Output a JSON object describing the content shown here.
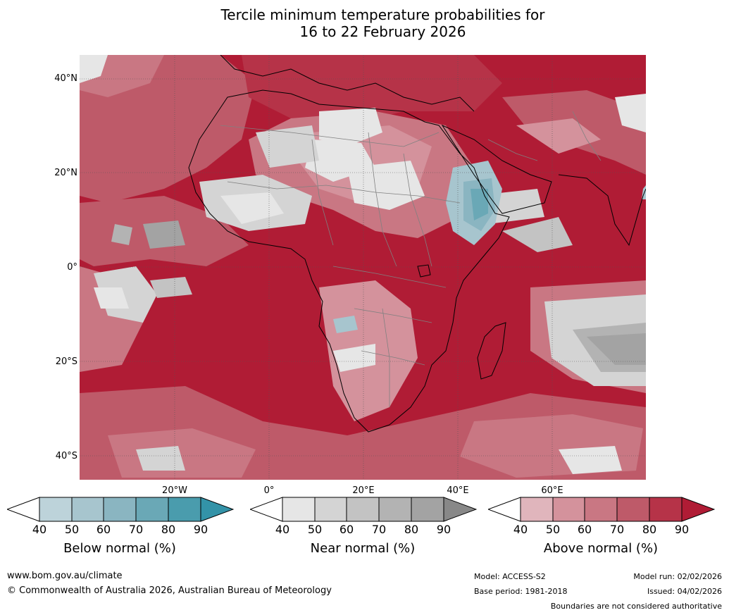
{
  "title": {
    "line1": "Tercile minimum temperature probabilities for",
    "line2": "16 to 22 February 2026"
  },
  "map": {
    "lat_labels": [
      "40°N",
      "20°N",
      "0°",
      "20°S",
      "40°S"
    ],
    "lon_labels": [
      "20°W",
      "0°",
      "20°E",
      "40°E",
      "60°E"
    ],
    "colors": {
      "above_normal": [
        "#e0b5bc",
        "#d4929c",
        "#c97783",
        "#be5a69",
        "#b63348",
        "#b01c35"
      ],
      "near_normal": [
        "#e6e6e6",
        "#d4d4d4",
        "#c3c3c3",
        "#b3b3b3",
        "#a3a3a3",
        "#888888"
      ],
      "below_normal": [
        "#bdd3da",
        "#a7c5ce",
        "#8ab5c1",
        "#6aa8b6",
        "#4a9cad",
        "#3393a8"
      ],
      "land_border": "#808080",
      "coastline": "#000000"
    }
  },
  "colorbars": [
    {
      "name": "below",
      "label": "Below normal (%)",
      "ticks": [
        "40",
        "50",
        "60",
        "70",
        "80",
        "90"
      ]
    },
    {
      "name": "near",
      "label": "Near normal (%)",
      "ticks": [
        "40",
        "50",
        "60",
        "70",
        "80",
        "90"
      ]
    },
    {
      "name": "above",
      "label": "Above normal (%)",
      "ticks": [
        "40",
        "50",
        "60",
        "70",
        "80",
        "90"
      ]
    }
  ],
  "footer": {
    "website": "www.bom.gov.au/climate",
    "copyright": "© Commonwealth of Australia 2026, Australian Bureau of Meteorology",
    "model": "Model: ACCESS-S2",
    "base_period": "Base period: 1981-2018",
    "model_run": "Model run: 02/02/2026",
    "issued": "Issued: 04/02/2026",
    "disclaimer": "Boundaries are not considered authoritative"
  }
}
